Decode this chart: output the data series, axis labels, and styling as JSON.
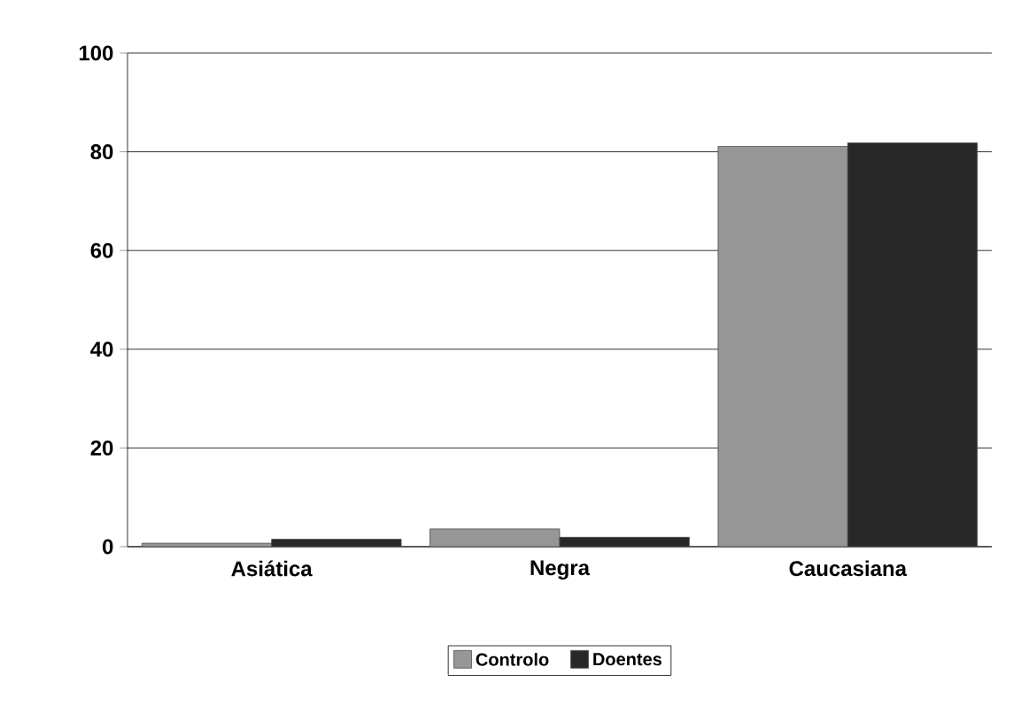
{
  "chart_data": {
    "type": "bar",
    "categories": [
      "Asiática",
      "Negra",
      "Caucasiana"
    ],
    "series": [
      {
        "name": "Controlo",
        "color": "#969696",
        "values": [
          0.7,
          3.6,
          81.1
        ]
      },
      {
        "name": "Doentes",
        "color": "#282828",
        "values": [
          1.5,
          1.9,
          81.8
        ]
      }
    ],
    "ylim": [
      0,
      100
    ],
    "yticks": [
      0,
      20,
      40,
      60,
      80,
      100
    ],
    "grid": "y",
    "legend": "bottom"
  }
}
